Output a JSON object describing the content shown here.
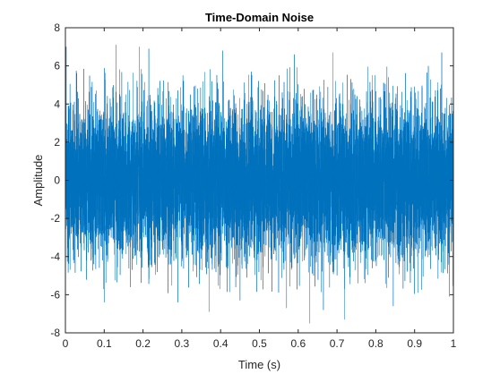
{
  "chart_data": {
    "type": "line",
    "title": "Time-Domain Noise",
    "xlabel": "Time (s)",
    "ylabel": "Amplitude",
    "xlim": [
      0,
      1
    ],
    "ylim": [
      -8,
      8
    ],
    "xticks": [
      "0",
      "0.1",
      "0.2",
      "0.3",
      "0.4",
      "0.5",
      "0.6",
      "0.7",
      "0.8",
      "0.9",
      "1"
    ],
    "yticks": [
      "-8",
      "-6",
      "-4",
      "-2",
      "0",
      "2",
      "4",
      "6",
      "8"
    ],
    "grid": false,
    "legend": "none",
    "series": [
      {
        "color": "#0072BD",
        "distribution": "gaussian",
        "mean": 0,
        "std": 2,
        "num_samples": 10000,
        "peaks": [
          {
            "x": 0.002,
            "y": 7.0
          },
          {
            "x": 0.13,
            "y": 7.1
          },
          {
            "x": 0.19,
            "y": 7.0
          },
          {
            "x": 0.215,
            "y": 6.9
          },
          {
            "x": 0.29,
            "y": 6.6
          },
          {
            "x": 0.405,
            "y": 6.8
          },
          {
            "x": 0.59,
            "y": 6.6
          },
          {
            "x": 0.69,
            "y": 6.7
          },
          {
            "x": 0.97,
            "y": 6.7
          },
          {
            "x": 0.1,
            "y": -6.4
          },
          {
            "x": 0.29,
            "y": -6.4
          },
          {
            "x": 0.37,
            "y": -6.9
          },
          {
            "x": 0.45,
            "y": -6.3
          },
          {
            "x": 0.57,
            "y": -6.7
          },
          {
            "x": 0.63,
            "y": -7.5
          },
          {
            "x": 0.665,
            "y": -6.8
          },
          {
            "x": 0.72,
            "y": -7.3
          },
          {
            "x": 0.845,
            "y": -6.6
          },
          {
            "x": 0.99,
            "y": -6.1
          }
        ]
      }
    ]
  }
}
